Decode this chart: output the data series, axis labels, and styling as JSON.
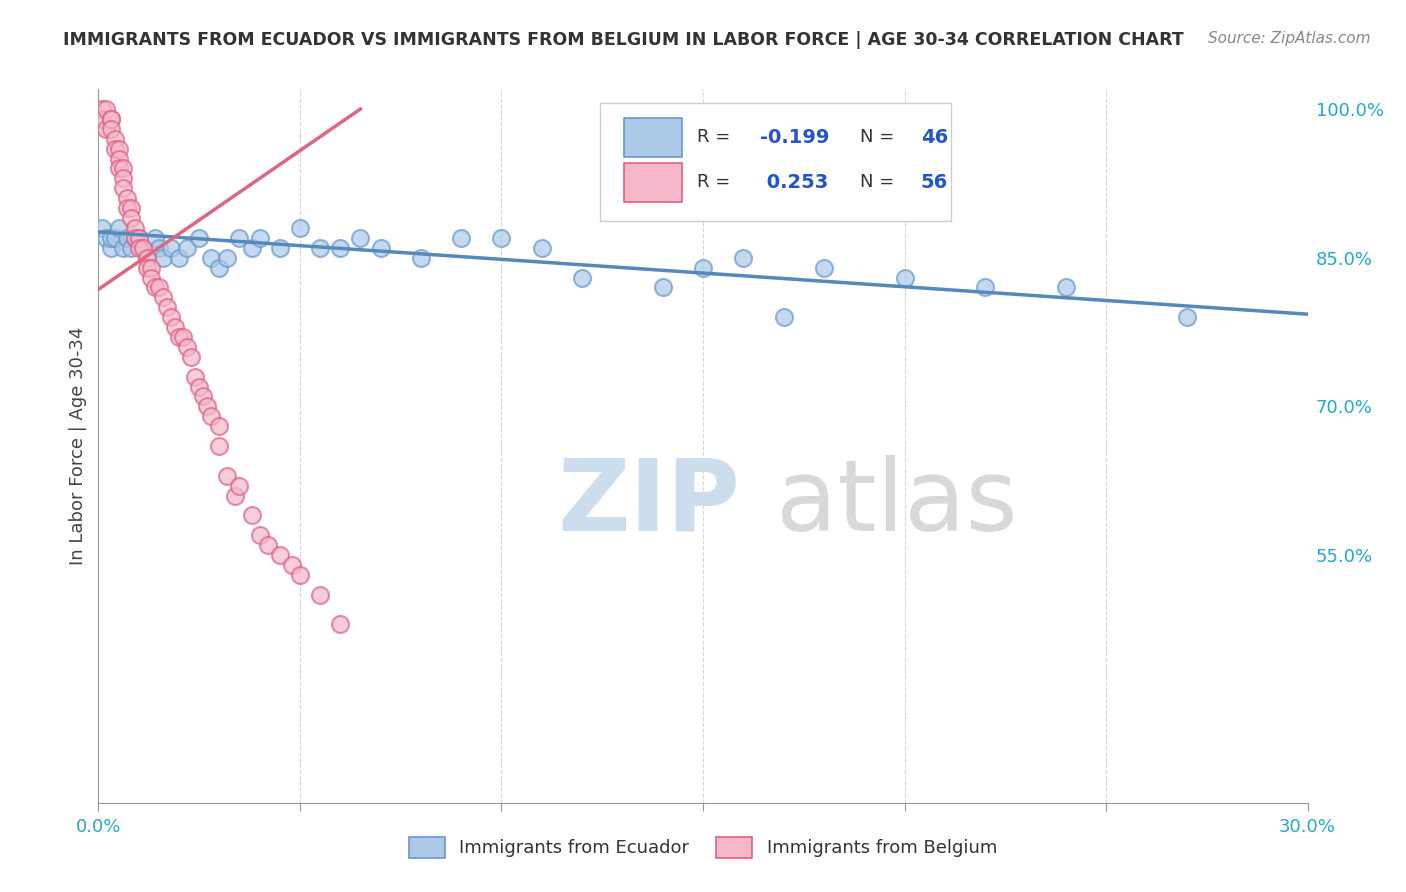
{
  "title": "IMMIGRANTS FROM ECUADOR VS IMMIGRANTS FROM BELGIUM IN LABOR FORCE | AGE 30-34 CORRELATION CHART",
  "source": "Source: ZipAtlas.com",
  "ylabel": "In Labor Force | Age 30-34",
  "xmin": 0.0,
  "xmax": 0.3,
  "ymin": 0.3,
  "ymax": 1.02,
  "ecuador_color": "#adc9e8",
  "ecuador_edge": "#6699cc",
  "belgium_color": "#f5b8ca",
  "belgium_edge": "#e06080",
  "ecuador_line_color": "#5588bb",
  "belgium_line_color": "#dd6680",
  "ecuador_R": -0.199,
  "ecuador_N": 46,
  "belgium_R": 0.253,
  "belgium_N": 56,
  "ecuador_x": [
    0.001,
    0.002,
    0.003,
    0.003,
    0.004,
    0.005,
    0.006,
    0.007,
    0.008,
    0.009,
    0.01,
    0.011,
    0.012,
    0.014,
    0.015,
    0.016,
    0.018,
    0.02,
    0.022,
    0.025,
    0.028,
    0.03,
    0.032,
    0.035,
    0.038,
    0.04,
    0.045,
    0.05,
    0.055,
    0.06,
    0.065,
    0.07,
    0.08,
    0.09,
    0.1,
    0.11,
    0.12,
    0.14,
    0.15,
    0.16,
    0.17,
    0.18,
    0.2,
    0.22,
    0.24,
    0.27
  ],
  "ecuador_y": [
    0.88,
    0.87,
    0.86,
    0.87,
    0.87,
    0.88,
    0.86,
    0.87,
    0.86,
    0.87,
    0.87,
    0.86,
    0.85,
    0.87,
    0.86,
    0.85,
    0.86,
    0.85,
    0.86,
    0.87,
    0.85,
    0.84,
    0.85,
    0.87,
    0.86,
    0.87,
    0.86,
    0.88,
    0.86,
    0.86,
    0.87,
    0.86,
    0.85,
    0.87,
    0.87,
    0.86,
    0.83,
    0.82,
    0.84,
    0.85,
    0.79,
    0.84,
    0.83,
    0.82,
    0.82,
    0.79
  ],
  "belgium_x": [
    0.001,
    0.001,
    0.002,
    0.002,
    0.003,
    0.003,
    0.003,
    0.004,
    0.004,
    0.005,
    0.005,
    0.005,
    0.006,
    0.006,
    0.006,
    0.007,
    0.007,
    0.008,
    0.008,
    0.009,
    0.009,
    0.01,
    0.01,
    0.011,
    0.012,
    0.012,
    0.013,
    0.013,
    0.014,
    0.015,
    0.016,
    0.017,
    0.018,
    0.019,
    0.02,
    0.021,
    0.022,
    0.023,
    0.024,
    0.025,
    0.026,
    0.027,
    0.028,
    0.03,
    0.03,
    0.032,
    0.034,
    0.035,
    0.038,
    0.04,
    0.042,
    0.045,
    0.048,
    0.05,
    0.055,
    0.06
  ],
  "belgium_y": [
    1.0,
    0.99,
    1.0,
    0.98,
    0.99,
    0.99,
    0.98,
    0.97,
    0.96,
    0.96,
    0.95,
    0.94,
    0.94,
    0.93,
    0.92,
    0.91,
    0.9,
    0.9,
    0.89,
    0.88,
    0.87,
    0.87,
    0.86,
    0.86,
    0.85,
    0.84,
    0.84,
    0.83,
    0.82,
    0.82,
    0.81,
    0.8,
    0.79,
    0.78,
    0.77,
    0.77,
    0.76,
    0.75,
    0.73,
    0.72,
    0.71,
    0.7,
    0.69,
    0.68,
    0.66,
    0.63,
    0.61,
    0.62,
    0.59,
    0.57,
    0.56,
    0.55,
    0.54,
    0.53,
    0.51,
    0.48
  ],
  "ecu_line_x0": 0.0,
  "ecu_line_y0": 0.876,
  "ecu_line_x1": 0.3,
  "ecu_line_y1": 0.793,
  "bel_line_x0": 0.0,
  "bel_line_y0": 0.818,
  "bel_line_x1": 0.065,
  "bel_line_y1": 1.0,
  "background_color": "#ffffff",
  "grid_color": "#cccccc",
  "tick_color": "#22aacc",
  "label_color": "#444444",
  "title_color": "#333333",
  "source_color": "#888888",
  "watermark_zip_color": "#ccdded",
  "watermark_atlas_color": "#d8d8d8"
}
